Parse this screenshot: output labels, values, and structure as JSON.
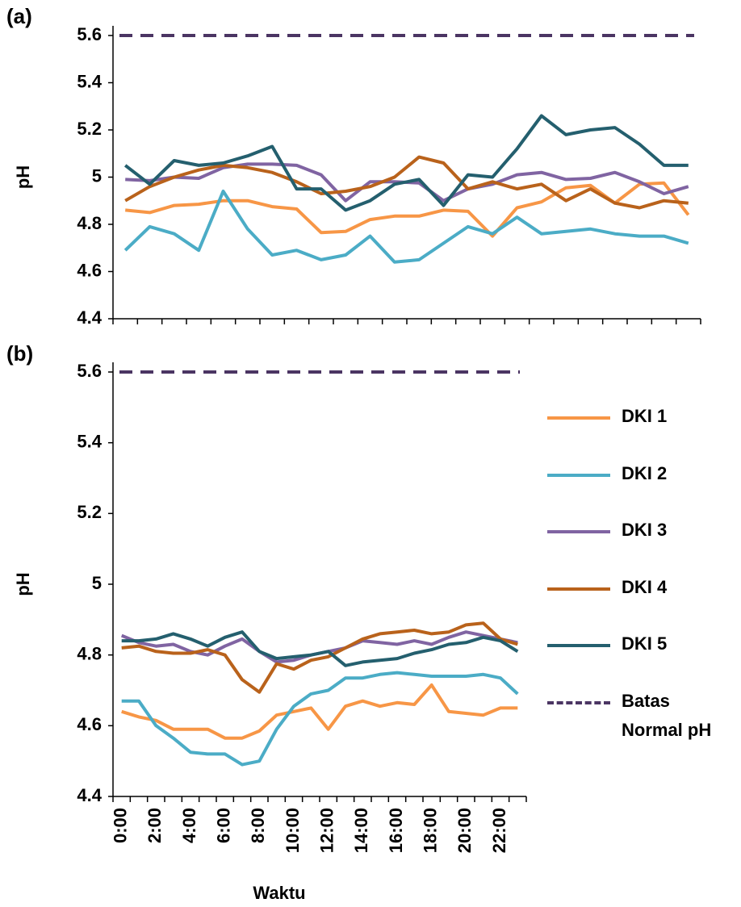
{
  "chart_data": [
    {
      "type": "line",
      "label": "(a)",
      "y_label": "pH",
      "categories": [
        null,
        null,
        null,
        null,
        null,
        null,
        null,
        null,
        null,
        null,
        null,
        null,
        null,
        null,
        null,
        null,
        null,
        null,
        null,
        null,
        null,
        null,
        null,
        null
      ],
      "ylim": [
        4.4,
        5.6
      ],
      "yticks": [
        4.4,
        4.6,
        4.8,
        5,
        5.2,
        5.4,
        5.6
      ],
      "legend": false,
      "series": [
        {
          "name": "DKI 1",
          "color": "#f79646",
          "values": [
            4.86,
            4.85,
            4.88,
            4.885,
            4.9,
            4.9,
            4.875,
            4.865,
            4.765,
            4.77,
            4.82,
            4.835,
            4.835,
            4.86,
            4.855,
            4.75,
            4.87,
            4.895,
            4.955,
            4.965,
            4.89,
            4.97,
            4.975,
            4.84
          ]
        },
        {
          "name": "DKI 2",
          "color": "#4bacc6",
          "values": [
            4.69,
            4.79,
            4.76,
            4.69,
            4.94,
            4.78,
            4.67,
            4.69,
            4.65,
            4.67,
            4.75,
            4.64,
            4.65,
            4.72,
            4.79,
            4.76,
            4.83,
            4.76,
            4.77,
            4.78,
            4.76,
            4.75,
            4.75,
            4.72
          ]
        },
        {
          "name": "DKI 3",
          "color": "#8064a2",
          "values": [
            4.99,
            4.985,
            5,
            4.995,
            5.04,
            5.055,
            5.055,
            5.05,
            5.01,
            4.9,
            4.98,
            4.98,
            4.975,
            4.9,
            4.95,
            4.97,
            5.01,
            5.02,
            4.99,
            4.995,
            5.02,
            4.98,
            4.93,
            4.96
          ]
        },
        {
          "name": "DKI 4",
          "color": "#b9621b",
          "values": [
            4.9,
            4.96,
            5,
            5.03,
            5.05,
            5.04,
            5.02,
            4.98,
            4.93,
            4.94,
            4.96,
            5,
            5.085,
            5.06,
            4.95,
            4.98,
            4.95,
            4.97,
            4.9,
            4.95,
            4.89,
            4.87,
            4.9,
            4.89
          ]
        },
        {
          "name": "DKI 5",
          "color": "#245f6e",
          "values": [
            5.05,
            4.97,
            5.07,
            5.05,
            5.06,
            5.09,
            5.13,
            4.95,
            4.95,
            4.86,
            4.9,
            4.97,
            4.99,
            4.88,
            5.01,
            5,
            5.12,
            5.26,
            5.18,
            5.2,
            5.21,
            5.14,
            5.05,
            5.05
          ]
        }
      ],
      "reference_line": {
        "name": "Batas Normal pH",
        "value": 5.6,
        "color": "#4b3563",
        "dashed": true
      }
    },
    {
      "type": "line",
      "label": "(b)",
      "y_label": "pH",
      "x_label": "Waktu",
      "categories": [
        "0:00",
        null,
        "2:00",
        null,
        "4:00",
        null,
        "6:00",
        null,
        "8:00",
        null,
        "10:00",
        null,
        "12:00",
        null,
        "14:00",
        null,
        "16:00",
        null,
        "18:00",
        null,
        "20:00",
        null,
        "22:00",
        null
      ],
      "ylim": [
        4.4,
        5.6
      ],
      "yticks": [
        4.4,
        4.6,
        4.8,
        5,
        5.2,
        5.4,
        5.6
      ],
      "legend": "right",
      "series": [
        {
          "name": "DKI 1",
          "color": "#f79646",
          "values": [
            4.64,
            4.625,
            4.615,
            4.59,
            4.59,
            4.59,
            4.565,
            4.565,
            4.585,
            4.63,
            4.64,
            4.65,
            4.59,
            4.655,
            4.67,
            4.655,
            4.665,
            4.66,
            4.715,
            4.64,
            4.635,
            4.63,
            4.65,
            4.65
          ]
        },
        {
          "name": "DKI 2",
          "color": "#4bacc6",
          "values": [
            4.67,
            4.67,
            4.6,
            4.565,
            4.525,
            4.52,
            4.52,
            4.49,
            4.5,
            4.59,
            4.655,
            4.69,
            4.7,
            4.735,
            4.735,
            4.745,
            4.75,
            4.745,
            4.74,
            4.74,
            4.74,
            4.745,
            4.735,
            4.69
          ]
        },
        {
          "name": "DKI 3",
          "color": "#8064a2",
          "values": [
            4.855,
            4.835,
            4.825,
            4.83,
            4.81,
            4.8,
            4.825,
            4.845,
            4.81,
            4.78,
            4.785,
            4.8,
            4.81,
            4.82,
            4.84,
            4.835,
            4.83,
            4.84,
            4.83,
            4.85,
            4.865,
            4.855,
            4.845,
            4.835
          ]
        },
        {
          "name": "DKI 4",
          "color": "#b9621b",
          "values": [
            4.82,
            4.825,
            4.81,
            4.805,
            4.805,
            4.815,
            4.8,
            4.73,
            4.695,
            4.775,
            4.76,
            4.785,
            4.795,
            4.82,
            4.845,
            4.86,
            4.865,
            4.87,
            4.86,
            4.865,
            4.885,
            4.89,
            4.845,
            4.83
          ]
        },
        {
          "name": "DKI 5",
          "color": "#245f6e",
          "values": [
            4.84,
            4.84,
            4.845,
            4.86,
            4.845,
            4.825,
            4.85,
            4.865,
            4.81,
            4.79,
            4.795,
            4.8,
            4.81,
            4.77,
            4.78,
            4.785,
            4.79,
            4.805,
            4.815,
            4.83,
            4.835,
            4.85,
            4.84,
            4.81
          ]
        }
      ],
      "reference_line": {
        "name": "Batas Normal pH",
        "value": 5.6,
        "color": "#4b3563",
        "dashed": true
      }
    }
  ]
}
